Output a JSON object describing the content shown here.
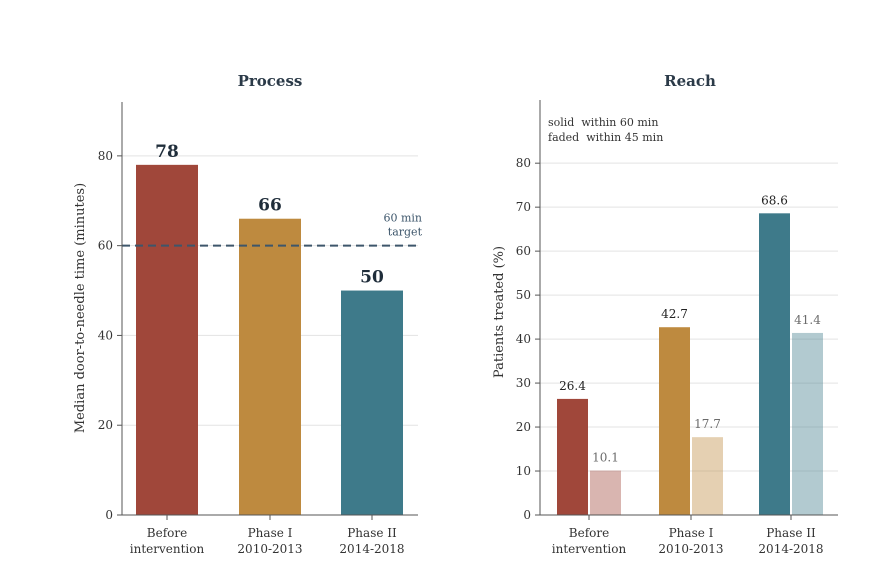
{
  "chart_data": [
    {
      "type": "bar",
      "title": "Process",
      "ylabel": "Median door-to-needle time (minutes)",
      "xlabel": "",
      "ylim": [
        0,
        92
      ],
      "yticks": [
        0,
        20,
        40,
        60,
        80
      ],
      "categories": [
        [
          "Before",
          "intervention"
        ],
        [
          "Phase I",
          "2010-2013"
        ],
        [
          "Phase II",
          "2014-2018"
        ]
      ],
      "values": [
        78,
        66,
        50
      ],
      "colors": [
        "#a0473a",
        "#be8a3f",
        "#3e7a8a"
      ],
      "reference_line": {
        "value": 60,
        "label_lines": [
          "60 min",
          "target"
        ],
        "color": "#3d566b",
        "style": "dashed"
      },
      "grid": true
    },
    {
      "type": "bar",
      "title": "Reach",
      "ylabel": "Patients treated (%)",
      "xlabel": "",
      "ylim": [
        0,
        88
      ],
      "yticks": [
        0,
        10,
        20,
        30,
        40,
        50,
        60,
        70,
        80
      ],
      "categories": [
        [
          "Before",
          "intervention"
        ],
        [
          "Phase I",
          "2010-2013"
        ],
        [
          "Phase II",
          "2014-2018"
        ]
      ],
      "series": [
        {
          "values": [
            26.4,
            42.7,
            68.6
          ],
          "colors": [
            "#a0473a",
            "#be8a3f",
            "#3e7a8a"
          ],
          "opacity": 1.0
        },
        {
          "values": [
            10.1,
            17.7,
            41.4
          ],
          "colors": [
            "#a0473a",
            "#be8a3f",
            "#3e7a8a"
          ],
          "opacity": 0.4
        }
      ],
      "annotations": [
        "solid  within 60 min",
        "faded  within 45 min"
      ],
      "grid": true
    }
  ]
}
